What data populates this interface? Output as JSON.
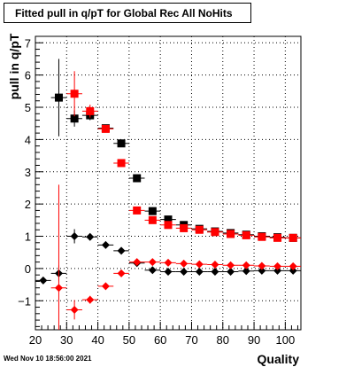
{
  "title": "Fitted pull in q/pT for Global Rec All NoHits",
  "footer_timestamp": "Wed Nov 10 18:56:00 2021",
  "chart_data": {
    "type": "scatter",
    "title": "Fitted pull in q/pT for Global Rec All NoHits",
    "xlabel": "Quality",
    "ylabel": "pull in q/pT",
    "xlim": [
      20,
      105
    ],
    "ylim": [
      -1.9,
      7.2
    ],
    "xticks": [
      20,
      30,
      40,
      50,
      60,
      70,
      80,
      90,
      100
    ],
    "yticks": [
      -1,
      0,
      1,
      2,
      3,
      4,
      5,
      6,
      7
    ],
    "grid": true,
    "series": [
      {
        "marker": "square",
        "color": "#000000",
        "points": [
          {
            "x": 27.5,
            "y": 5.3,
            "yerr": 1.2
          },
          {
            "x": 32.5,
            "y": 4.65,
            "yerr": 0.25
          },
          {
            "x": 37.5,
            "y": 4.75,
            "yerr": 0.15
          },
          {
            "x": 42.5,
            "y": 4.35,
            "yerr": 0.07
          },
          {
            "x": 47.5,
            "y": 3.88,
            "yerr": 0.05
          },
          {
            "x": 52.5,
            "y": 2.8,
            "yerr": 0.04
          },
          {
            "x": 57.5,
            "y": 1.78,
            "yerr": 0.03
          },
          {
            "x": 62.5,
            "y": 1.52,
            "yerr": 0.03
          },
          {
            "x": 67.5,
            "y": 1.35,
            "yerr": 0.03
          },
          {
            "x": 72.5,
            "y": 1.23,
            "yerr": 0.03
          },
          {
            "x": 77.5,
            "y": 1.15,
            "yerr": 0.03
          },
          {
            "x": 82.5,
            "y": 1.1,
            "yerr": 0.03
          },
          {
            "x": 87.5,
            "y": 1.05,
            "yerr": 0.03
          },
          {
            "x": 92.5,
            "y": 1.0,
            "yerr": 0.03
          },
          {
            "x": 97.5,
            "y": 0.97,
            "yerr": 0.03
          },
          {
            "x": 102.5,
            "y": 0.95,
            "yerr": 0.03
          }
        ]
      },
      {
        "marker": "square",
        "color": "#ff0000",
        "points": [
          {
            "x": 32.5,
            "y": 5.42,
            "yerr": 0.7
          },
          {
            "x": 37.5,
            "y": 4.88,
            "yerr": 0.2
          },
          {
            "x": 42.5,
            "y": 4.33,
            "yerr": 0.08
          },
          {
            "x": 47.5,
            "y": 3.27,
            "yerr": 0.05
          },
          {
            "x": 52.5,
            "y": 1.8,
            "yerr": 0.04
          },
          {
            "x": 57.5,
            "y": 1.5,
            "yerr": 0.03
          },
          {
            "x": 62.5,
            "y": 1.35,
            "yerr": 0.03
          },
          {
            "x": 67.5,
            "y": 1.25,
            "yerr": 0.03
          },
          {
            "x": 72.5,
            "y": 1.2,
            "yerr": 0.03
          },
          {
            "x": 77.5,
            "y": 1.13,
            "yerr": 0.03
          },
          {
            "x": 82.5,
            "y": 1.07,
            "yerr": 0.03
          },
          {
            "x": 87.5,
            "y": 1.03,
            "yerr": 0.03
          },
          {
            "x": 92.5,
            "y": 0.98,
            "yerr": 0.03
          },
          {
            "x": 97.5,
            "y": 0.95,
            "yerr": 0.03
          },
          {
            "x": 102.5,
            "y": 0.95,
            "yerr": 0.03
          }
        ]
      },
      {
        "marker": "diamond",
        "color": "#000000",
        "points": [
          {
            "x": 22.5,
            "y": -0.37,
            "yerr": 0.1
          },
          {
            "x": 27.5,
            "y": -0.15,
            "yerr": 0.25
          },
          {
            "x": 32.5,
            "y": 1.0,
            "yerr": 0.22
          },
          {
            "x": 37.5,
            "y": 0.98,
            "yerr": 0.08
          },
          {
            "x": 42.5,
            "y": 0.73,
            "yerr": 0.05
          },
          {
            "x": 47.5,
            "y": 0.55,
            "yerr": 0.04
          },
          {
            "x": 52.5,
            "y": 0.17,
            "yerr": 0.03
          },
          {
            "x": 57.5,
            "y": -0.05,
            "yerr": 0.03
          },
          {
            "x": 62.5,
            "y": -0.1,
            "yerr": 0.03
          },
          {
            "x": 67.5,
            "y": -0.1,
            "yerr": 0.03
          },
          {
            "x": 72.5,
            "y": -0.1,
            "yerr": 0.03
          },
          {
            "x": 77.5,
            "y": -0.1,
            "yerr": 0.03
          },
          {
            "x": 82.5,
            "y": -0.1,
            "yerr": 0.03
          },
          {
            "x": 87.5,
            "y": -0.08,
            "yerr": 0.03
          },
          {
            "x": 92.5,
            "y": -0.07,
            "yerr": 0.03
          },
          {
            "x": 97.5,
            "y": -0.07,
            "yerr": 0.03
          },
          {
            "x": 102.5,
            "y": -0.07,
            "yerr": 0.03
          }
        ]
      },
      {
        "marker": "diamond",
        "color": "#ff0000",
        "points": [
          {
            "x": 27.5,
            "y": -0.6,
            "yerr": 3.2
          },
          {
            "x": 32.5,
            "y": -1.28,
            "yerr": 0.3
          },
          {
            "x": 37.5,
            "y": -0.97,
            "yerr": 0.12
          },
          {
            "x": 42.5,
            "y": -0.55,
            "yerr": 0.06
          },
          {
            "x": 47.5,
            "y": -0.15,
            "yerr": 0.04
          },
          {
            "x": 52.5,
            "y": 0.2,
            "yerr": 0.03
          },
          {
            "x": 57.5,
            "y": 0.2,
            "yerr": 0.03
          },
          {
            "x": 62.5,
            "y": 0.18,
            "yerr": 0.03
          },
          {
            "x": 67.5,
            "y": 0.15,
            "yerr": 0.03
          },
          {
            "x": 72.5,
            "y": 0.13,
            "yerr": 0.03
          },
          {
            "x": 77.5,
            "y": 0.12,
            "yerr": 0.03
          },
          {
            "x": 82.5,
            "y": 0.1,
            "yerr": 0.03
          },
          {
            "x": 87.5,
            "y": 0.1,
            "yerr": 0.03
          },
          {
            "x": 92.5,
            "y": 0.08,
            "yerr": 0.03
          },
          {
            "x": 97.5,
            "y": 0.07,
            "yerr": 0.03
          },
          {
            "x": 102.5,
            "y": 0.07,
            "yerr": 0.03
          }
        ]
      }
    ]
  }
}
